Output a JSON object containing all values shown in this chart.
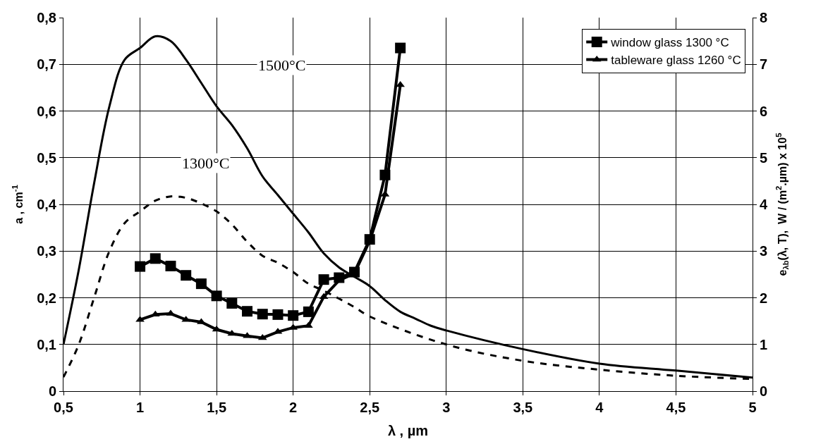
{
  "chart_data": {
    "type": "line",
    "xlabel": "λ , µm",
    "ylabel": "a , cm$^{-1}$",
    "y2label": "e$_{λb}$(λ, T),  W / (m$^{2}$.µm) x 10$^{5}$",
    "xlim": [
      0.5,
      5
    ],
    "xticks": [
      {
        "value": 0.5,
        "label": "0,5"
      },
      1,
      {
        "value": 1.5,
        "label": "1,5"
      },
      2,
      {
        "value": 2.5,
        "label": "2,5"
      },
      3,
      {
        "value": 3.5,
        "label": "3,5"
      },
      4,
      {
        "value": 4.5,
        "label": "4,5"
      },
      5
    ],
    "ylim": [
      0,
      0.8
    ],
    "yticks": [
      0,
      {
        "value": 0.1,
        "label": "0,1"
      },
      {
        "value": 0.2,
        "label": "0,2"
      },
      {
        "value": 0.3,
        "label": "0,3"
      },
      {
        "value": 0.4,
        "label": "0,4"
      },
      {
        "value": 0.5,
        "label": "0,5"
      },
      {
        "value": 0.6,
        "label": "0,6"
      },
      {
        "value": 0.7,
        "label": "0,7"
      },
      {
        "value": 0.8,
        "label": "0,8"
      }
    ],
    "y2lim": [
      0,
      8
    ],
    "y2ticks": [
      0,
      1,
      2,
      3,
      4,
      5,
      6,
      7,
      8
    ],
    "grid": true,
    "legend": "top right",
    "series": [
      {
        "name": "window glass 1300 °C",
        "color": "#000000",
        "marker": "square",
        "line_style": "solid",
        "x": [
          1.0,
          1.1,
          1.2,
          1.3,
          1.4,
          1.5,
          1.6,
          1.7,
          1.8,
          1.9,
          2.0,
          2.1,
          2.2,
          2.3,
          2.4,
          2.5,
          2.6,
          2.7
        ],
        "values": [
          0.267,
          0.284,
          0.268,
          0.248,
          0.23,
          0.204,
          0.188,
          0.171,
          0.165,
          0.164,
          0.162,
          0.17,
          0.239,
          0.243,
          0.255,
          0.325,
          0.463,
          0.735
        ]
      },
      {
        "name": "tableware glass 1260 °C",
        "color": "#000000",
        "marker": "triangle",
        "line_style": "solid",
        "x": [
          1.0,
          1.1,
          1.2,
          1.3,
          1.4,
          1.5,
          1.6,
          1.7,
          1.8,
          1.9,
          2.0,
          2.1,
          2.2,
          2.3,
          2.4,
          2.5,
          2.6,
          2.7
        ],
        "values": [
          0.153,
          0.164,
          0.166,
          0.153,
          0.148,
          0.132,
          0.123,
          0.118,
          0.114,
          0.127,
          0.136,
          0.14,
          0.202,
          0.237,
          0.252,
          0.322,
          0.421,
          0.656
        ]
      },
      {
        "color": "#000000",
        "marker": "none",
        "line_style": "solid",
        "axis": "y2",
        "x": [
          0.5,
          0.6,
          0.7,
          0.8,
          0.9,
          1.0,
          1.1,
          1.2,
          1.3,
          1.4,
          1.5,
          1.6,
          1.7,
          1.8,
          1.9,
          2.0,
          2.1,
          2.2,
          2.3,
          2.4,
          2.5,
          2.6,
          2.7,
          2.8,
          2.9,
          3.0,
          3.5,
          4.0,
          4.5,
          5.0
        ],
        "values": [
          1.0,
          2.6,
          4.45,
          6.1,
          7.1,
          7.35,
          7.6,
          7.5,
          7.1,
          6.6,
          6.1,
          5.7,
          5.2,
          4.6,
          4.2,
          3.8,
          3.4,
          2.95,
          2.65,
          2.45,
          2.25,
          1.95,
          1.7,
          1.55,
          1.4,
          1.3,
          0.9,
          0.59,
          0.44,
          0.29
        ]
      },
      {
        "color": "#000000",
        "marker": "none",
        "line_style": "dashed",
        "axis": "y2",
        "x": [
          0.5,
          0.6,
          0.7,
          0.8,
          0.9,
          1.0,
          1.1,
          1.2,
          1.3,
          1.4,
          1.5,
          1.6,
          1.7,
          1.8,
          1.9,
          2.0,
          2.1,
          2.2,
          2.4,
          2.5,
          3.0,
          3.5,
          4.0,
          4.5,
          5.0
        ],
        "values": [
          0.3,
          1.0,
          2.0,
          3.0,
          3.6,
          3.85,
          4.08,
          4.17,
          4.14,
          4.02,
          3.85,
          3.57,
          3.2,
          2.9,
          2.75,
          2.55,
          2.3,
          2.15,
          1.8,
          1.6,
          1.0,
          0.65,
          0.46,
          0.33,
          0.26
        ]
      }
    ],
    "annotations": [
      "1500°C",
      "1300°C"
    ]
  }
}
